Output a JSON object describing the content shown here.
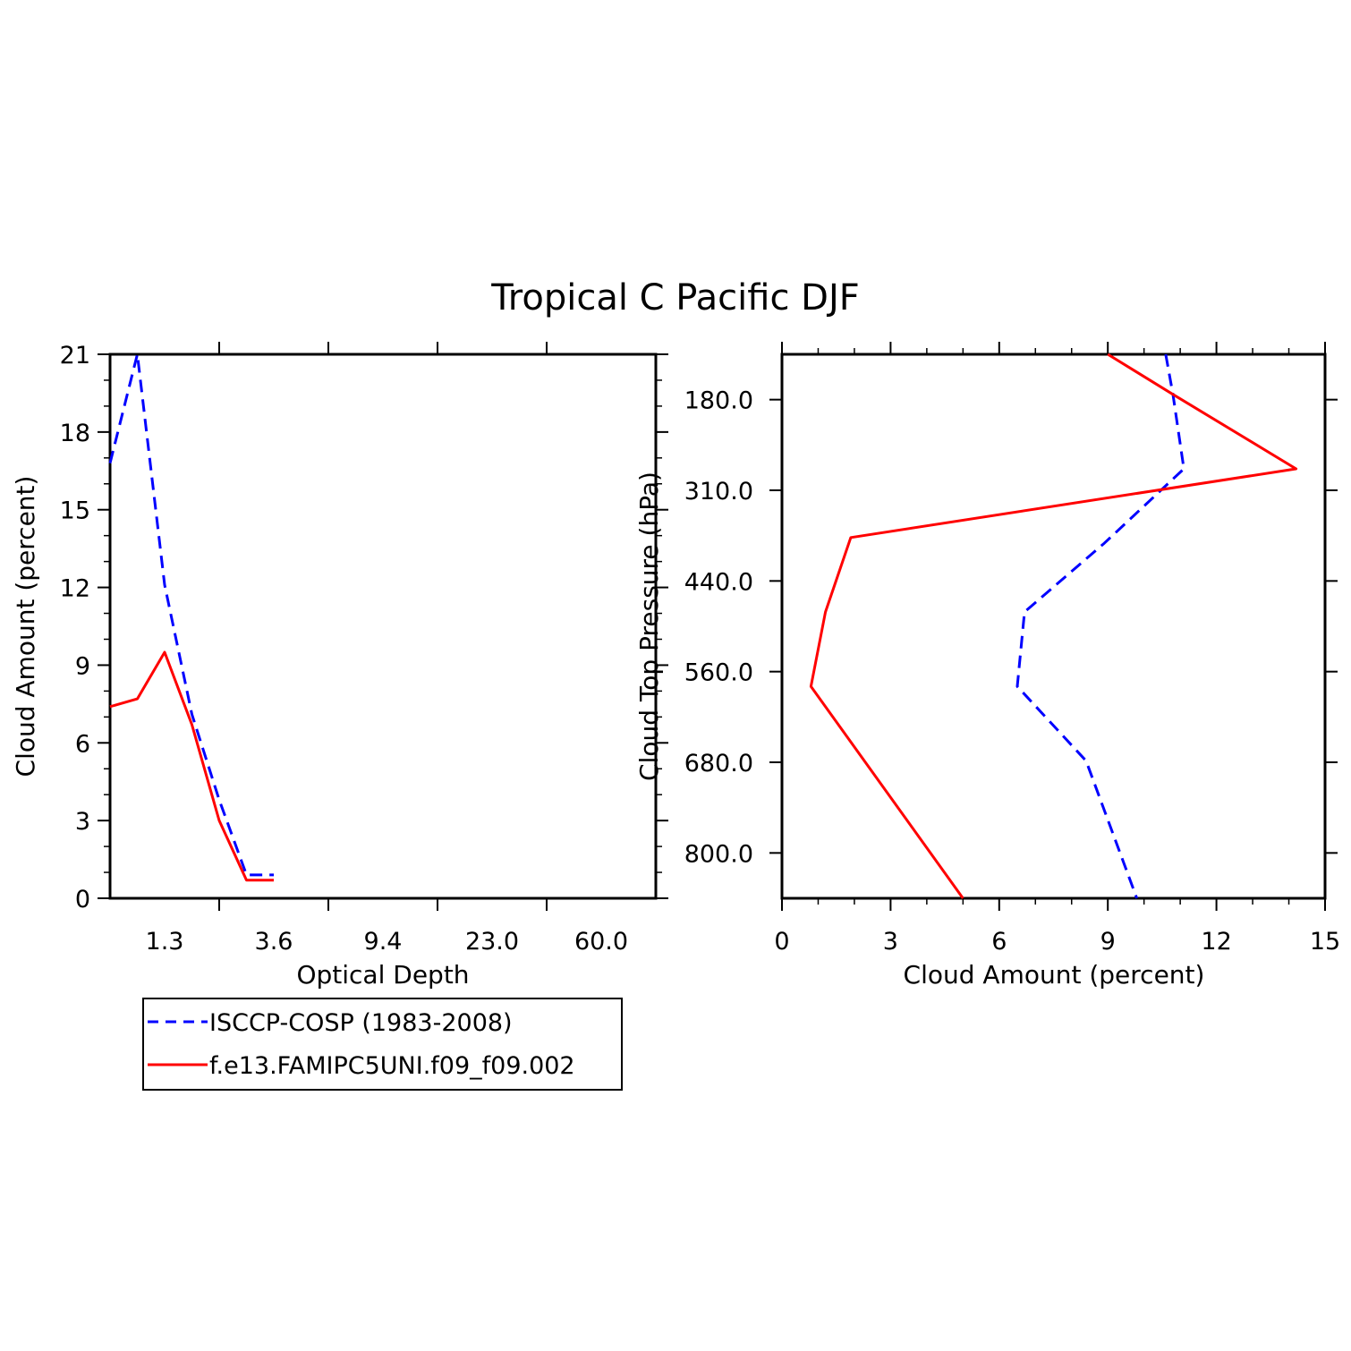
{
  "title": "Tropical C Pacific DJF",
  "colors": {
    "obs": "#0000ff",
    "model": "#ff0000",
    "axis": "#000000"
  },
  "legend": {
    "entries": [
      {
        "label": "ISCCP-COSP (1983-2008)",
        "series": "obs"
      },
      {
        "label": "f.e13.FAMIPC5UNI.f09_f09.002",
        "series": "model"
      }
    ]
  },
  "chart_data": [
    {
      "type": "line",
      "xlabel": "Optical Depth",
      "ylabel": "Cloud Amount (percent)",
      "x_tick_labels": [
        "1.3",
        "3.6",
        "9.4",
        "23.0",
        "60.0"
      ],
      "y_ticks": [
        0,
        3,
        6,
        9,
        12,
        15,
        18,
        21
      ],
      "ylim": [
        0,
        21
      ],
      "x_bins": 5,
      "grid": false,
      "series": [
        {
          "name": "ISCCP-COSP (1983-2008)",
          "key": "obs",
          "style": "dashed",
          "x": [
            0.0,
            0.25,
            0.5,
            0.75,
            1.0,
            1.25,
            1.5
          ],
          "y": [
            16.8,
            21.0,
            12.1,
            7.1,
            3.8,
            0.9,
            0.9
          ]
        },
        {
          "name": "f.e13.FAMIPC5UNI.f09_f09.002",
          "key": "model",
          "style": "solid",
          "x": [
            0.0,
            0.25,
            0.5,
            0.75,
            1.0,
            1.25,
            1.5
          ],
          "y": [
            7.4,
            7.7,
            9.5,
            6.7,
            3.0,
            0.7,
            0.7
          ]
        }
      ]
    },
    {
      "type": "line",
      "xlabel": "Cloud Amount (percent)",
      "ylabel": "Cloud Top Pressure (hPa)",
      "x_ticks": [
        0,
        3,
        6,
        9,
        12,
        15
      ],
      "xlim": [
        0,
        15
      ],
      "y_tick_labels": [
        "180.0",
        "310.0",
        "440.0",
        "560.0",
        "680.0",
        "800.0"
      ],
      "ylim": [
        1000,
        50
      ],
      "grid": false,
      "series": [
        {
          "name": "ISCCP-COSP (1983-2008)",
          "key": "obs",
          "style": "dashed",
          "x": [
            10.6,
            10.8,
            11.1,
            8.9,
            6.7,
            6.5,
            8.4,
            9.8
          ],
          "y": [
            50,
            120,
            250,
            380,
            500,
            630,
            760,
            1000
          ]
        },
        {
          "name": "f.e13.FAMIPC5UNI.f09_f09.002",
          "key": "model",
          "style": "solid",
          "x": [
            9.0,
            10.8,
            14.2,
            1.9,
            1.2,
            0.8,
            5.0
          ],
          "y": [
            50,
            120,
            250,
            370,
            500,
            630,
            1000
          ]
        }
      ]
    }
  ]
}
